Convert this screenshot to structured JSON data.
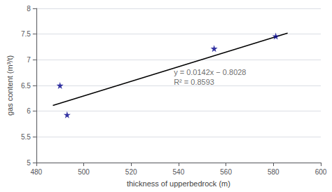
{
  "chart_data": {
    "type": "scatter",
    "xlabel": "thickness of upperbedrock (m)",
    "ylabel": "gas content (m³/t)",
    "series": [
      {
        "type": "scatter",
        "marker": "star",
        "color": "#00008B",
        "x": [
          490,
          493,
          555,
          581
        ],
        "values": [
          6.5,
          5.93,
          7.22,
          7.46
        ]
      },
      {
        "type": "line",
        "color": "#000000",
        "x": [
          487,
          586
        ],
        "values": [
          6.1126,
          7.5184
        ]
      }
    ],
    "annotations": [
      {
        "text": "y = 0.0142x − 0.8028\nR² = 0.8593",
        "x": 538,
        "y": 6.85
      }
    ],
    "xlim": [
      480,
      600
    ],
    "ylim": [
      5.0,
      8.0
    ],
    "xticks": [
      480,
      500,
      520,
      540,
      560,
      580,
      600
    ],
    "yticks": [
      5.0,
      5.5,
      6.0,
      6.5,
      7.0,
      7.5,
      8.0
    ],
    "grid": true
  }
}
